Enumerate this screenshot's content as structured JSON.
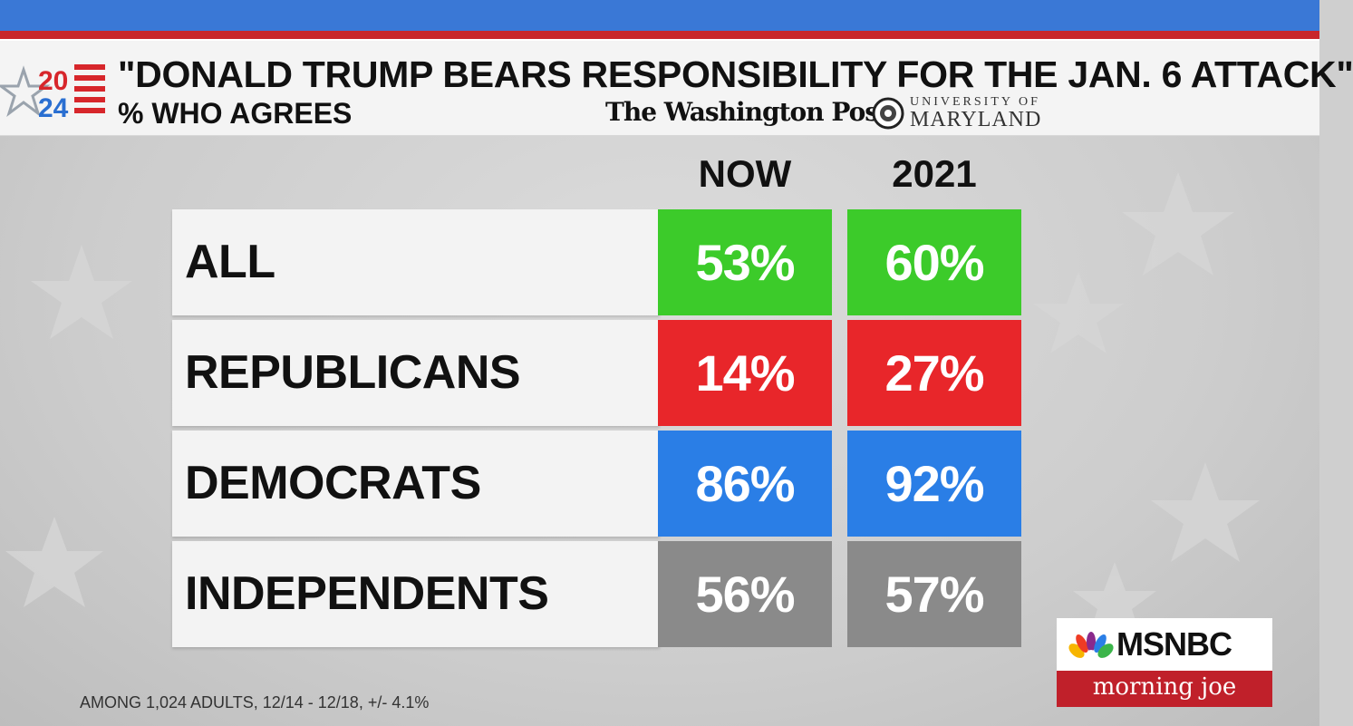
{
  "header": {
    "logo_year_top": "20",
    "logo_year_bottom": "24",
    "title": "\"DONALD TRUMP BEARS RESPONSIBILITY FOR THE JAN. 6 ATTACK\"",
    "subtitle": "% WHO AGREES",
    "source_1": "The Washington Post",
    "source_2_top": "UNIVERSITY OF",
    "source_2_bottom": "MARYLAND"
  },
  "chart_data": {
    "type": "table",
    "columns": [
      "NOW",
      "2021"
    ],
    "rows": [
      {
        "label": "ALL",
        "values": [
          "53%",
          "60%"
        ],
        "color": "#3ccb2a"
      },
      {
        "label": "REPUBLICANS",
        "values": [
          "14%",
          "27%"
        ],
        "color": "#e8262a"
      },
      {
        "label": "DEMOCRATS",
        "values": [
          "86%",
          "92%"
        ],
        "color": "#2a7ee6"
      },
      {
        "label": "INDEPENDENTS",
        "values": [
          "56%",
          "57%"
        ],
        "color": "#8a8a8a"
      }
    ]
  },
  "footnote": "AMONG 1,024 ADULTS, 12/14 - 12/18, +/- 4.1%",
  "branding": {
    "network": "MSNBC",
    "show": "morning joe",
    "peacock_icon": "peacock-icon"
  },
  "colors": {
    "top_bar": "#3a78d6",
    "accent_red": "#c8262b",
    "show_red": "#c0202a"
  }
}
